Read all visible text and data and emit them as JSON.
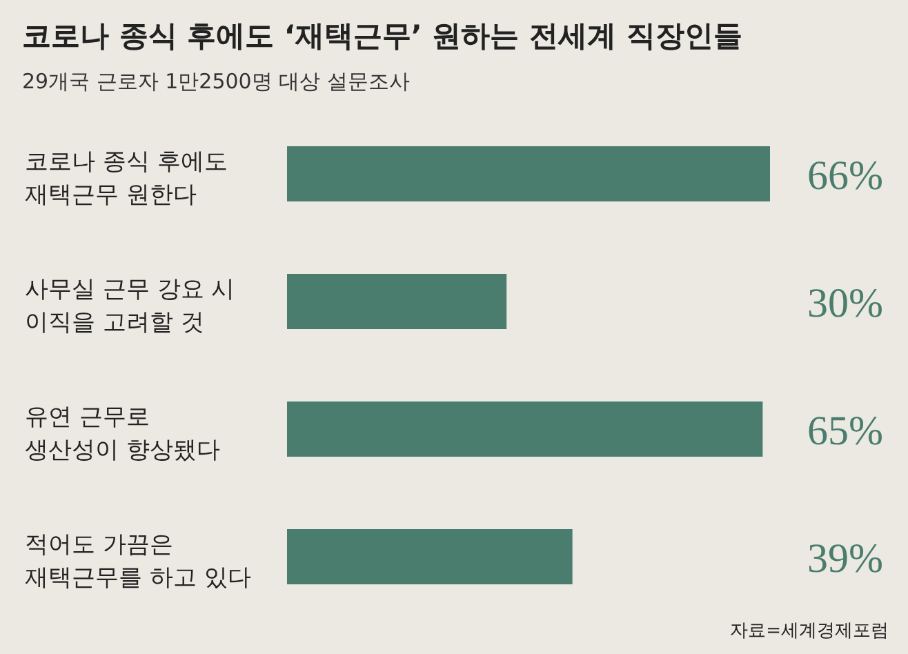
{
  "chart_data": {
    "type": "bar",
    "orientation": "horizontal",
    "title": "코로나 종식 후에도 ‘재택근무’ 원하는 전세계 직장인들",
    "subtitle": "29개국 근로자 1만2500명 대상 설문조사",
    "categories": [
      "코로나 종식 후에도\n재택근무 원한다",
      "사무실 근무 강요 시\n이직을 고려할 것",
      "유연 근무로\n생산성이 향상됐다",
      "적어도 가끔은\n재택근무를 하고 있다"
    ],
    "values": [
      66,
      30,
      65,
      39
    ],
    "value_labels": [
      "66%",
      "30%",
      "65%",
      "39%"
    ],
    "color": "#4a7d6e",
    "tick_labels": "y",
    "annotations": [
      "자료=세계경제포럼"
    ]
  }
}
